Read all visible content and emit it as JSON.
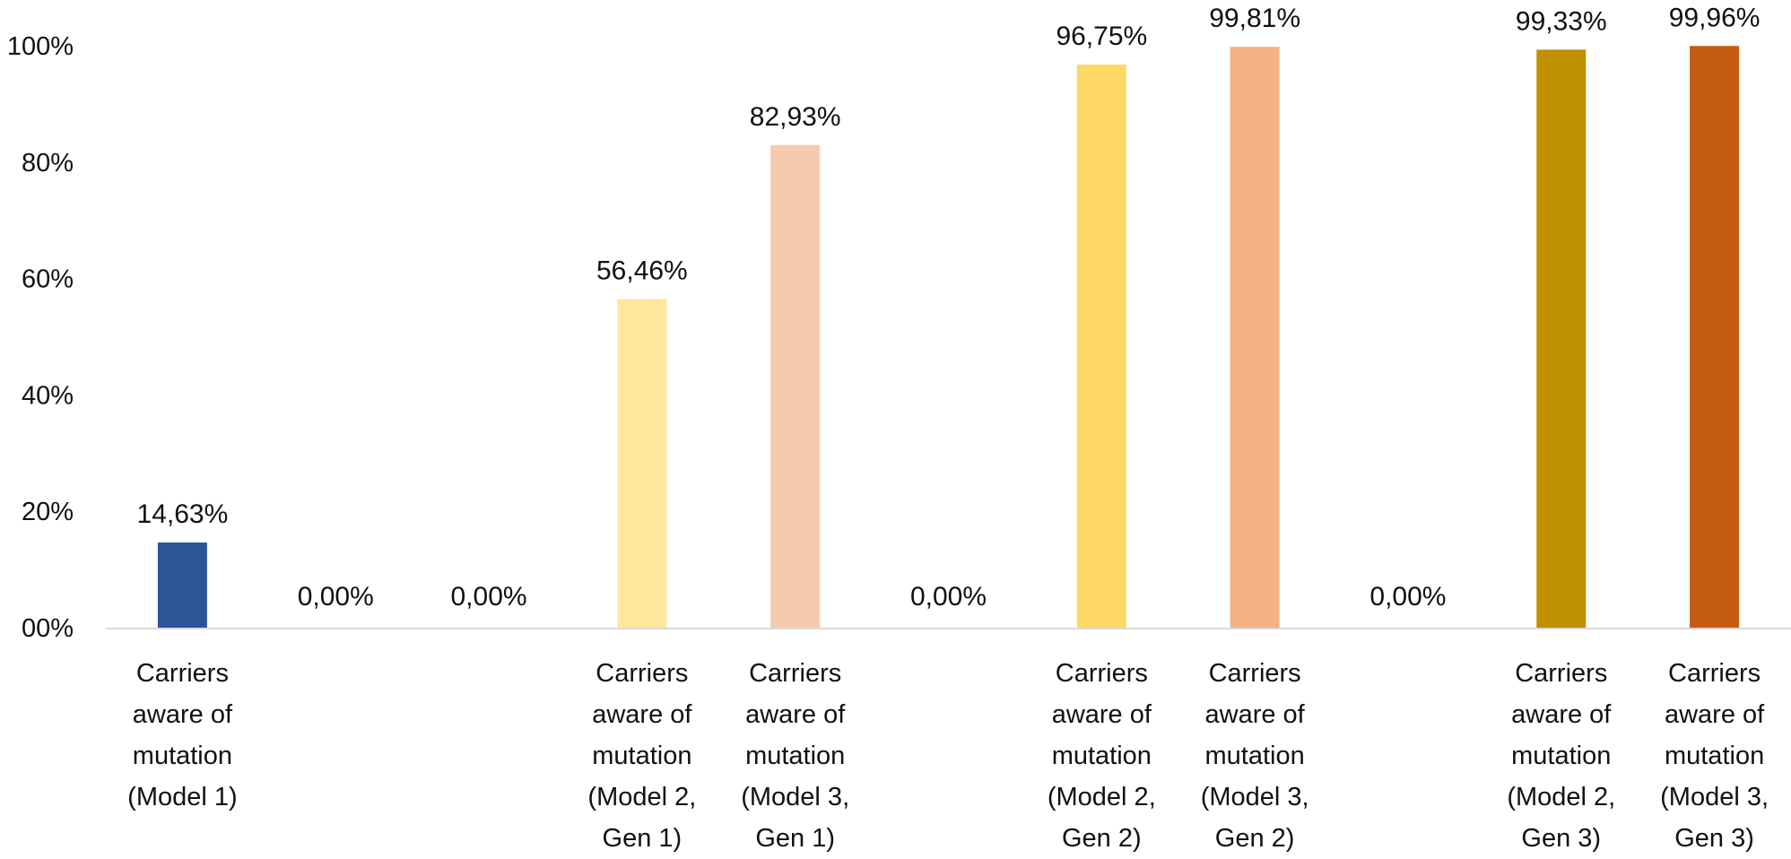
{
  "chart_data": {
    "type": "bar",
    "title": "",
    "xlabel": "",
    "ylabel": "",
    "ylim": [
      0,
      100
    ],
    "y_ticks": [
      "00%",
      "20%",
      "40%",
      "60%",
      "80%",
      "100%"
    ],
    "grid": false,
    "legend": "none",
    "bars": [
      {
        "label": [
          "Carriers",
          "aware of",
          "mutation",
          "(Model 1)"
        ],
        "value": 14.63,
        "value_label": "14,63%",
        "color": "#2d5596"
      },
      {
        "label": [],
        "value": 0,
        "value_label": "0,00%",
        "color": "#ffffff"
      },
      {
        "label": [],
        "value": 0,
        "value_label": "0,00%",
        "color": "#ffffff"
      },
      {
        "label": [
          "Carriers",
          "aware of",
          "mutation",
          "(Model 2,",
          "Gen 1)"
        ],
        "value": 56.46,
        "value_label": "56,46%",
        "color": "#fee79d"
      },
      {
        "label": [
          "Carriers",
          "aware of",
          "mutation",
          "(Model 3,",
          "Gen 1)"
        ],
        "value": 82.93,
        "value_label": "82,93%",
        "color": "#f6cbad"
      },
      {
        "label": [],
        "value": 0,
        "value_label": "0,00%",
        "color": "#ffffff"
      },
      {
        "label": [
          "Carriers",
          "aware of",
          "mutation",
          "(Model 2,",
          "Gen 2)"
        ],
        "value": 96.75,
        "value_label": "96,75%",
        "color": "#fdd865"
      },
      {
        "label": [
          "Carriers",
          "aware of",
          "mutation",
          "(Model 3,",
          "Gen 2)"
        ],
        "value": 99.81,
        "value_label": "99,81%",
        "color": "#f4b184"
      },
      {
        "label": [],
        "value": 0,
        "value_label": "0,00%",
        "color": "#ffffff"
      },
      {
        "label": [
          "Carriers",
          "aware of",
          "mutation",
          "(Model 2,",
          "Gen 3)"
        ],
        "value": 99.33,
        "value_label": "99,33%",
        "color": "#bf9000"
      },
      {
        "label": [
          "Carriers",
          "aware of",
          "mutation",
          "(Model 3,",
          "Gen 3)"
        ],
        "value": 99.96,
        "value_label": "99,96%",
        "color": "#c55a11"
      }
    ],
    "axis_color": "#d9d9d9"
  }
}
